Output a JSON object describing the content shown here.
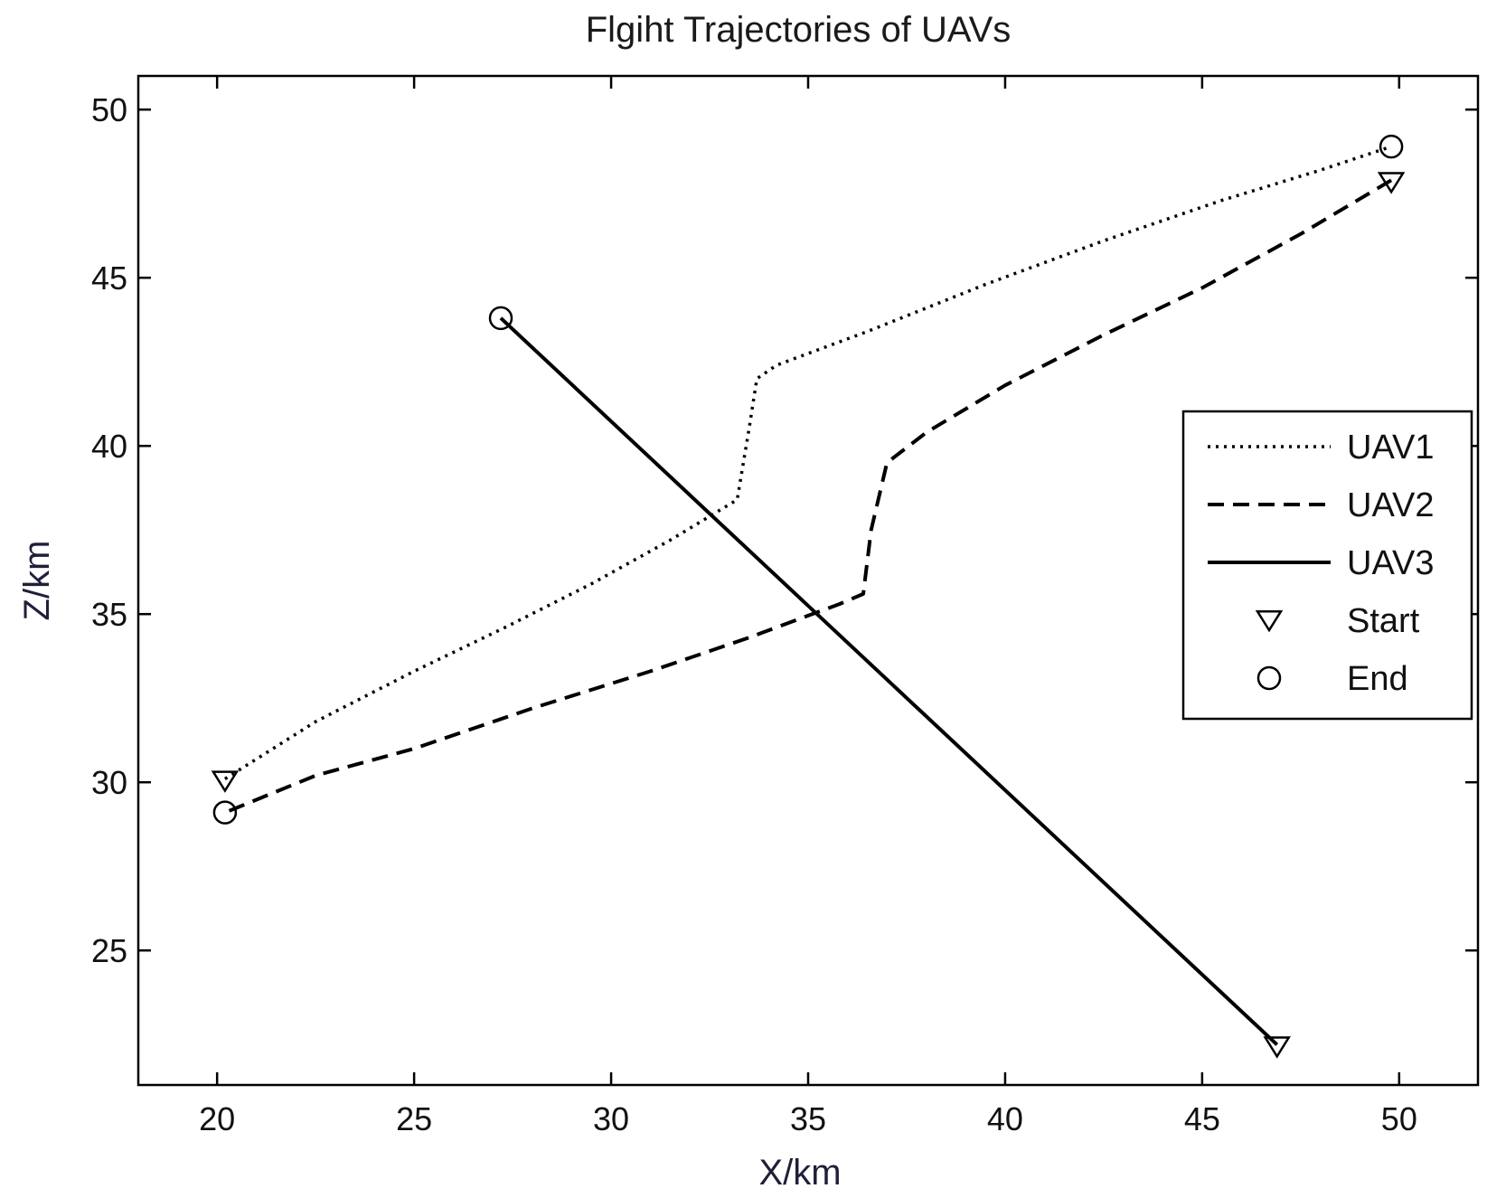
{
  "chart_data": {
    "type": "line",
    "title": "Flgiht Trajectories of UAVs",
    "xlabel": "X/km",
    "ylabel": "Z/km",
    "xlim": [
      18,
      52
    ],
    "ylim": [
      21,
      51
    ],
    "xticks": [
      20,
      25,
      30,
      35,
      40,
      45,
      50
    ],
    "yticks": [
      25,
      30,
      35,
      40,
      45,
      50
    ],
    "grid": false,
    "legend_position": "right",
    "series": [
      {
        "name": "UAV1",
        "style": "dotted",
        "x": [
          20.2,
          22.5,
          25.0,
          27.3,
          29.5,
          31.5,
          33.2,
          33.5,
          33.7,
          34.2,
          36.5,
          39.5,
          42.5,
          45.5,
          48.0,
          49.8
        ],
        "y": [
          30.1,
          31.8,
          33.3,
          34.6,
          35.9,
          37.2,
          38.4,
          40.5,
          42.0,
          42.4,
          43.4,
          44.8,
          46.1,
          47.3,
          48.2,
          48.9
        ]
      },
      {
        "name": "UAV2",
        "style": "dashed",
        "x": [
          49.8,
          47.5,
          45.0,
          42.5,
          40.0,
          38.0,
          37.0,
          36.6,
          36.4,
          35.8,
          33.5,
          31.0,
          28.0,
          25.0,
          22.5,
          20.2
        ],
        "y": [
          47.9,
          46.3,
          44.7,
          43.3,
          41.8,
          40.4,
          39.5,
          37.5,
          35.6,
          35.3,
          34.3,
          33.3,
          32.2,
          31.0,
          30.2,
          29.1
        ]
      },
      {
        "name": "UAV3",
        "style": "solid",
        "x": [
          46.9,
          27.2
        ],
        "y": [
          22.2,
          43.8
        ]
      }
    ],
    "start_points": [
      {
        "x": 20.2,
        "y": 30.1
      },
      {
        "x": 49.8,
        "y": 47.9
      },
      {
        "x": 46.9,
        "y": 22.2
      }
    ],
    "end_points": [
      {
        "x": 49.8,
        "y": 48.9
      },
      {
        "x": 20.2,
        "y": 29.1
      },
      {
        "x": 27.2,
        "y": 43.8
      }
    ],
    "legend": [
      {
        "label": "UAV1",
        "kind": "dotted"
      },
      {
        "label": "UAV2",
        "kind": "dashed"
      },
      {
        "label": "UAV3",
        "kind": "solid"
      },
      {
        "label": "Start",
        "kind": "triangle-marker"
      },
      {
        "label": "End",
        "kind": "circle-marker"
      }
    ]
  }
}
